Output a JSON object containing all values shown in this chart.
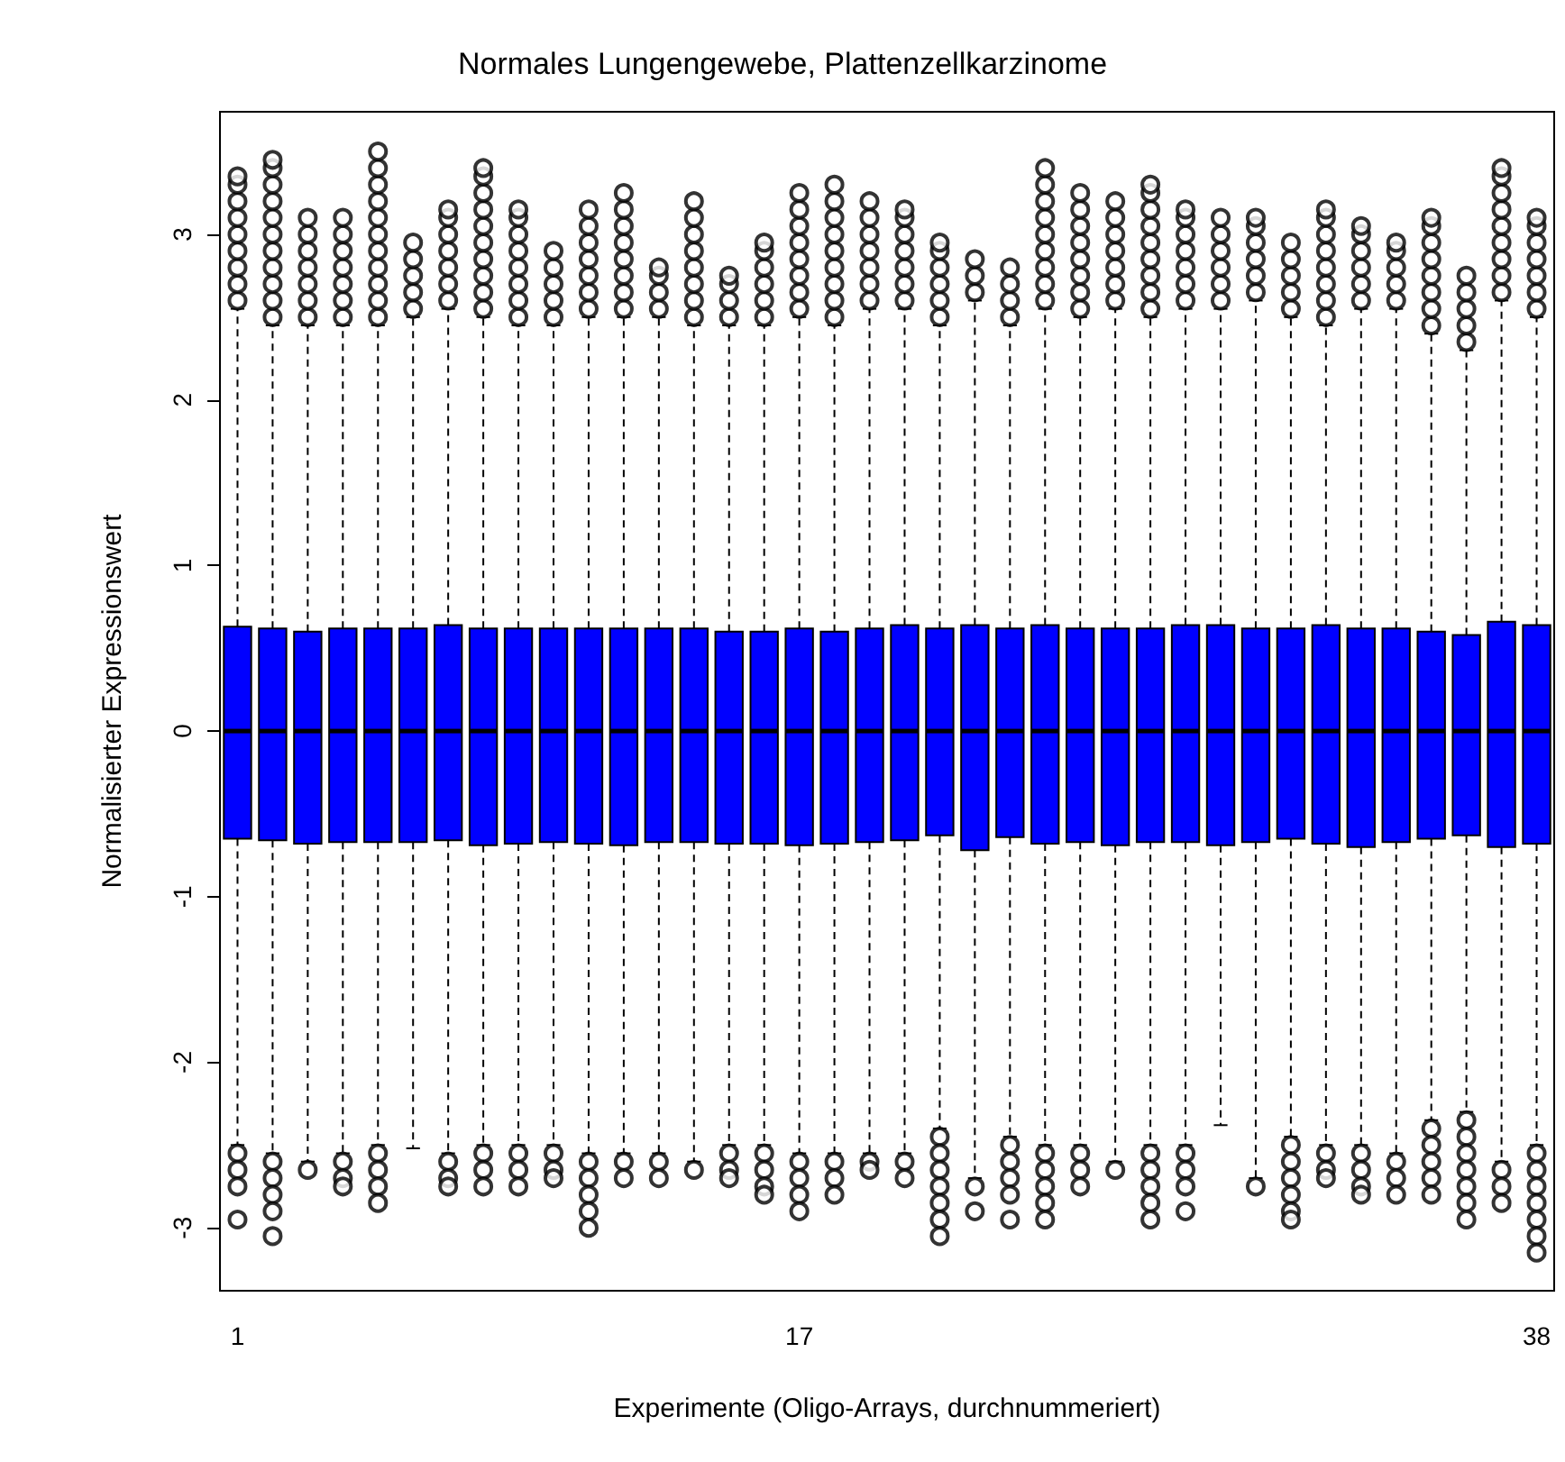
{
  "chart_data": {
    "type": "box",
    "title": "Normales Lungengewebe, Plattenzellkarzinome",
    "xlabel": "Experimente (Oligo-Arrays, durchnummeriert)",
    "ylabel": "Normalisierter Expressionswert",
    "categories": [
      "1",
      null,
      null,
      null,
      null,
      null,
      null,
      null,
      null,
      null,
      null,
      null,
      null,
      null,
      null,
      null,
      "17",
      null,
      null,
      null,
      null,
      null,
      null,
      null,
      null,
      null,
      null,
      null,
      null,
      null,
      null,
      null,
      null,
      null,
      null,
      null,
      null,
      "38"
    ],
    "ylim": [
      -3.38,
      3.74
    ],
    "yticks": [
      -3,
      -2,
      -1,
      0,
      1,
      2,
      3
    ],
    "line_style": "dashed",
    "marker": "circle",
    "series": [
      {
        "color": "#0000ff",
        "boxes": [
          {
            "low": -2.5,
            "q1": -0.65,
            "median": 0,
            "q3": 0.63,
            "high": 2.55,
            "outliers": [
              2.6,
              2.7,
              2.8,
              2.9,
              3.0,
              3.1,
              3.2,
              3.3,
              3.35,
              -2.55,
              -2.65,
              -2.75,
              -2.95
            ]
          },
          {
            "low": -2.55,
            "q1": -0.66,
            "median": 0,
            "q3": 0.62,
            "high": 2.45,
            "outliers": [
              2.5,
              2.6,
              2.7,
              2.8,
              2.9,
              3.0,
              3.1,
              3.2,
              3.3,
              3.4,
              3.45,
              -2.6,
              -2.7,
              -2.8,
              -2.9,
              -3.05
            ]
          },
          {
            "low": -2.6,
            "q1": -0.68,
            "median": 0,
            "q3": 0.6,
            "high": 2.45,
            "outliers": [
              2.5,
              2.6,
              2.7,
              2.8,
              2.9,
              3.0,
              3.1,
              -2.65
            ]
          },
          {
            "low": -2.55,
            "q1": -0.67,
            "median": 0,
            "q3": 0.62,
            "high": 2.45,
            "outliers": [
              2.5,
              2.6,
              2.7,
              2.8,
              2.9,
              3.0,
              3.1,
              -2.6,
              -2.7,
              -2.75
            ]
          },
          {
            "low": -2.5,
            "q1": -0.67,
            "median": 0,
            "q3": 0.62,
            "high": 2.45,
            "outliers": [
              2.5,
              2.6,
              2.7,
              2.8,
              2.9,
              3.0,
              3.1,
              3.2,
              3.3,
              3.4,
              3.5,
              -2.55,
              -2.65,
              -2.75,
              -2.85
            ]
          },
          {
            "low": -2.52,
            "q1": -0.67,
            "median": 0,
            "q3": 0.62,
            "high": 2.5,
            "outliers": [
              2.55,
              2.65,
              2.75,
              2.85,
              2.95
            ]
          },
          {
            "low": -2.55,
            "q1": -0.66,
            "median": 0,
            "q3": 0.64,
            "high": 2.55,
            "outliers": [
              2.6,
              2.7,
              2.8,
              2.9,
              3.0,
              3.1,
              3.15,
              -2.6,
              -2.7,
              -2.75
            ]
          },
          {
            "low": -2.5,
            "q1": -0.69,
            "median": 0,
            "q3": 0.62,
            "high": 2.5,
            "outliers": [
              2.55,
              2.65,
              2.75,
              2.85,
              2.95,
              3.05,
              3.15,
              3.25,
              3.35,
              3.4,
              -2.55,
              -2.65,
              -2.75
            ]
          },
          {
            "low": -2.5,
            "q1": -0.68,
            "median": 0,
            "q3": 0.62,
            "high": 2.45,
            "outliers": [
              2.5,
              2.6,
              2.7,
              2.8,
              2.9,
              3.0,
              3.1,
              3.15,
              -2.55,
              -2.65,
              -2.75
            ]
          },
          {
            "low": -2.5,
            "q1": -0.67,
            "median": 0,
            "q3": 0.62,
            "high": 2.45,
            "outliers": [
              2.5,
              2.6,
              2.7,
              2.8,
              2.9,
              -2.55,
              -2.65,
              -2.7
            ]
          },
          {
            "low": -2.55,
            "q1": -0.68,
            "median": 0,
            "q3": 0.62,
            "high": 2.5,
            "outliers": [
              2.55,
              2.65,
              2.75,
              2.85,
              2.95,
              3.05,
              3.15,
              -2.6,
              -2.7,
              -2.8,
              -2.9,
              -3.0
            ]
          },
          {
            "low": -2.55,
            "q1": -0.69,
            "median": 0,
            "q3": 0.62,
            "high": 2.5,
            "outliers": [
              2.55,
              2.65,
              2.75,
              2.85,
              2.95,
              3.05,
              3.15,
              3.25,
              -2.6,
              -2.7
            ]
          },
          {
            "low": -2.55,
            "q1": -0.67,
            "median": 0,
            "q3": 0.62,
            "high": 2.5,
            "outliers": [
              2.55,
              2.65,
              2.75,
              2.8,
              -2.6,
              -2.7
            ]
          },
          {
            "low": -2.6,
            "q1": -0.67,
            "median": 0,
            "q3": 0.62,
            "high": 2.45,
            "outliers": [
              2.5,
              2.6,
              2.7,
              2.8,
              2.9,
              3.0,
              3.1,
              3.2,
              -2.65
            ]
          },
          {
            "low": -2.5,
            "q1": -0.68,
            "median": 0,
            "q3": 0.6,
            "high": 2.45,
            "outliers": [
              2.5,
              2.6,
              2.7,
              2.75,
              -2.55,
              -2.65,
              -2.7
            ]
          },
          {
            "low": -2.5,
            "q1": -0.68,
            "median": 0,
            "q3": 0.6,
            "high": 2.45,
            "outliers": [
              2.5,
              2.6,
              2.7,
              2.8,
              2.9,
              2.95,
              -2.55,
              -2.65,
              -2.75,
              -2.8
            ]
          },
          {
            "low": -2.55,
            "q1": -0.69,
            "median": 0,
            "q3": 0.62,
            "high": 2.5,
            "outliers": [
              2.55,
              2.65,
              2.75,
              2.85,
              2.95,
              3.05,
              3.15,
              3.25,
              -2.6,
              -2.7,
              -2.8,
              -2.9
            ]
          },
          {
            "low": -2.55,
            "q1": -0.68,
            "median": 0,
            "q3": 0.6,
            "high": 2.45,
            "outliers": [
              2.5,
              2.6,
              2.7,
              2.8,
              2.9,
              3.0,
              3.1,
              3.2,
              3.3,
              -2.6,
              -2.7,
              -2.8
            ]
          },
          {
            "low": -2.55,
            "q1": -0.67,
            "median": 0,
            "q3": 0.62,
            "high": 2.55,
            "outliers": [
              2.6,
              2.7,
              2.8,
              2.9,
              3.0,
              3.1,
              3.2,
              -2.6,
              -2.65
            ]
          },
          {
            "low": -2.55,
            "q1": -0.66,
            "median": 0,
            "q3": 0.64,
            "high": 2.55,
            "outliers": [
              2.6,
              2.7,
              2.8,
              2.9,
              3.0,
              3.1,
              3.15,
              -2.6,
              -2.7
            ]
          },
          {
            "low": -2.4,
            "q1": -0.63,
            "median": 0,
            "q3": 0.62,
            "high": 2.45,
            "outliers": [
              2.5,
              2.6,
              2.7,
              2.8,
              2.9,
              2.95,
              -2.45,
              -2.55,
              -2.65,
              -2.75,
              -2.85,
              -2.95,
              -3.05
            ]
          },
          {
            "low": -2.7,
            "q1": -0.72,
            "median": 0,
            "q3": 0.64,
            "high": 2.6,
            "outliers": [
              2.65,
              2.75,
              2.85,
              -2.75,
              -2.9
            ]
          },
          {
            "low": -2.45,
            "q1": -0.64,
            "median": 0,
            "q3": 0.62,
            "high": 2.45,
            "outliers": [
              2.5,
              2.6,
              2.7,
              2.8,
              -2.5,
              -2.6,
              -2.7,
              -2.8,
              -2.95
            ]
          },
          {
            "low": -2.5,
            "q1": -0.68,
            "median": 0,
            "q3": 0.64,
            "high": 2.55,
            "outliers": [
              2.6,
              2.7,
              2.8,
              2.9,
              3.0,
              3.1,
              3.2,
              3.3,
              3.4,
              -2.55,
              -2.65,
              -2.75,
              -2.85,
              -2.95
            ]
          },
          {
            "low": -2.5,
            "q1": -0.67,
            "median": 0,
            "q3": 0.62,
            "high": 2.5,
            "outliers": [
              2.55,
              2.65,
              2.75,
              2.85,
              2.95,
              3.05,
              3.15,
              3.25,
              -2.55,
              -2.65,
              -2.75
            ]
          },
          {
            "low": -2.6,
            "q1": -0.69,
            "median": 0,
            "q3": 0.62,
            "high": 2.55,
            "outliers": [
              2.6,
              2.7,
              2.8,
              2.9,
              3.0,
              3.1,
              3.2,
              -2.65
            ]
          },
          {
            "low": -2.5,
            "q1": -0.67,
            "median": 0,
            "q3": 0.62,
            "high": 2.5,
            "outliers": [
              2.55,
              2.65,
              2.75,
              2.85,
              2.95,
              3.05,
              3.15,
              3.25,
              3.3,
              -2.55,
              -2.65,
              -2.75,
              -2.85,
              -2.95
            ]
          },
          {
            "low": -2.5,
            "q1": -0.67,
            "median": 0,
            "q3": 0.64,
            "high": 2.55,
            "outliers": [
              2.6,
              2.7,
              2.8,
              2.9,
              3.0,
              3.1,
              3.15,
              -2.55,
              -2.65,
              -2.75,
              -2.9
            ]
          },
          {
            "low": -2.38,
            "q1": -0.69,
            "median": 0,
            "q3": 0.64,
            "high": 2.55,
            "outliers": [
              2.6,
              2.7,
              2.8,
              2.9,
              3.0,
              3.1
            ]
          },
          {
            "low": -2.7,
            "q1": -0.67,
            "median": 0,
            "q3": 0.62,
            "high": 2.6,
            "outliers": [
              2.65,
              2.75,
              2.85,
              2.95,
              3.05,
              3.1,
              -2.75
            ]
          },
          {
            "low": -2.45,
            "q1": -0.65,
            "median": 0,
            "q3": 0.62,
            "high": 2.5,
            "outliers": [
              2.55,
              2.65,
              2.75,
              2.85,
              2.95,
              -2.5,
              -2.6,
              -2.7,
              -2.8,
              -2.9,
              -2.95
            ]
          },
          {
            "low": -2.5,
            "q1": -0.68,
            "median": 0,
            "q3": 0.64,
            "high": 2.45,
            "outliers": [
              2.5,
              2.6,
              2.7,
              2.8,
              2.9,
              3.0,
              3.1,
              3.15,
              -2.55,
              -2.65,
              -2.7
            ]
          },
          {
            "low": -2.5,
            "q1": -0.7,
            "median": 0,
            "q3": 0.62,
            "high": 2.55,
            "outliers": [
              2.6,
              2.7,
              2.8,
              2.9,
              3.0,
              3.05,
              -2.55,
              -2.65,
              -2.75,
              -2.8
            ]
          },
          {
            "low": -2.55,
            "q1": -0.67,
            "median": 0,
            "q3": 0.62,
            "high": 2.55,
            "outliers": [
              2.6,
              2.7,
              2.8,
              2.9,
              2.95,
              -2.6,
              -2.7,
              -2.8
            ]
          },
          {
            "low": -2.35,
            "q1": -0.65,
            "median": 0,
            "q3": 0.6,
            "high": 2.4,
            "outliers": [
              2.45,
              2.55,
              2.65,
              2.75,
              2.85,
              2.95,
              3.05,
              3.1,
              -2.4,
              -2.5,
              -2.6,
              -2.7,
              -2.8
            ]
          },
          {
            "low": -2.3,
            "q1": -0.63,
            "median": 0,
            "q3": 0.58,
            "high": 2.3,
            "outliers": [
              2.35,
              2.45,
              2.55,
              2.65,
              2.75,
              -2.35,
              -2.45,
              -2.55,
              -2.65,
              -2.75,
              -2.85,
              -2.95
            ]
          },
          {
            "low": -2.6,
            "q1": -0.7,
            "median": 0,
            "q3": 0.66,
            "high": 2.6,
            "outliers": [
              2.65,
              2.75,
              2.85,
              2.95,
              3.05,
              3.15,
              3.25,
              3.35,
              3.4,
              -2.65,
              -2.75,
              -2.85
            ]
          },
          {
            "low": -2.5,
            "q1": -0.68,
            "median": 0,
            "q3": 0.64,
            "high": 2.5,
            "outliers": [
              2.55,
              2.65,
              2.75,
              2.85,
              2.95,
              3.05,
              3.1,
              -2.55,
              -2.65,
              -2.75,
              -2.85,
              -2.95,
              -3.05,
              -3.15
            ]
          }
        ]
      }
    ]
  }
}
